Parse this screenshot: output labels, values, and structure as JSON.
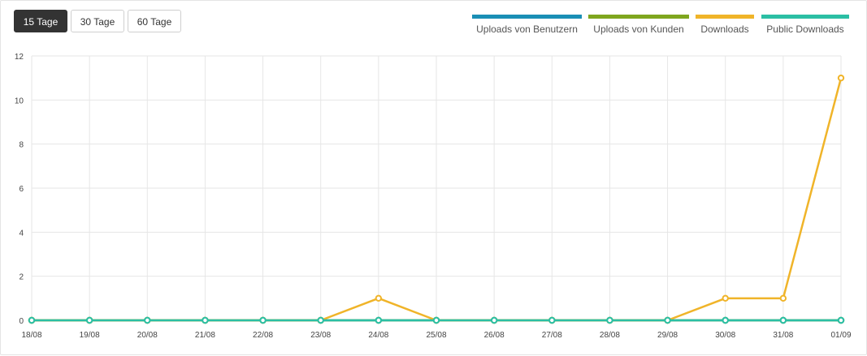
{
  "range_buttons": [
    {
      "label": "15 Tage",
      "active": true
    },
    {
      "label": "30 Tage",
      "active": false
    },
    {
      "label": "60 Tage",
      "active": false
    }
  ],
  "chart_data": {
    "type": "line",
    "categories": [
      "18/08",
      "19/08",
      "20/08",
      "21/08",
      "22/08",
      "23/08",
      "24/08",
      "25/08",
      "26/08",
      "27/08",
      "28/08",
      "29/08",
      "30/08",
      "31/08",
      "01/09"
    ],
    "ylim": [
      0,
      12
    ],
    "yticks": [
      0,
      2,
      4,
      6,
      8,
      10,
      12
    ],
    "grid": true,
    "legend_position": "top-right",
    "series": [
      {
        "name": "Uploads von Benutzern",
        "color": "#1a8fb5",
        "values": [
          0,
          0,
          0,
          0,
          0,
          0,
          0,
          0,
          0,
          0,
          0,
          0,
          0,
          0,
          0
        ]
      },
      {
        "name": "Uploads von Kunden",
        "color": "#7fa61e",
        "values": [
          0,
          0,
          0,
          0,
          0,
          0,
          0,
          0,
          0,
          0,
          0,
          0,
          0,
          0,
          0
        ]
      },
      {
        "name": "Downloads",
        "color": "#f0b429",
        "values": [
          0,
          0,
          0,
          0,
          0,
          0,
          1,
          0,
          0,
          0,
          0,
          0,
          1,
          1,
          11
        ]
      },
      {
        "name": "Public Downloads",
        "color": "#2bbfa4",
        "values": [
          0,
          0,
          0,
          0,
          0,
          0,
          0,
          0,
          0,
          0,
          0,
          0,
          0,
          0,
          0
        ]
      }
    ]
  }
}
